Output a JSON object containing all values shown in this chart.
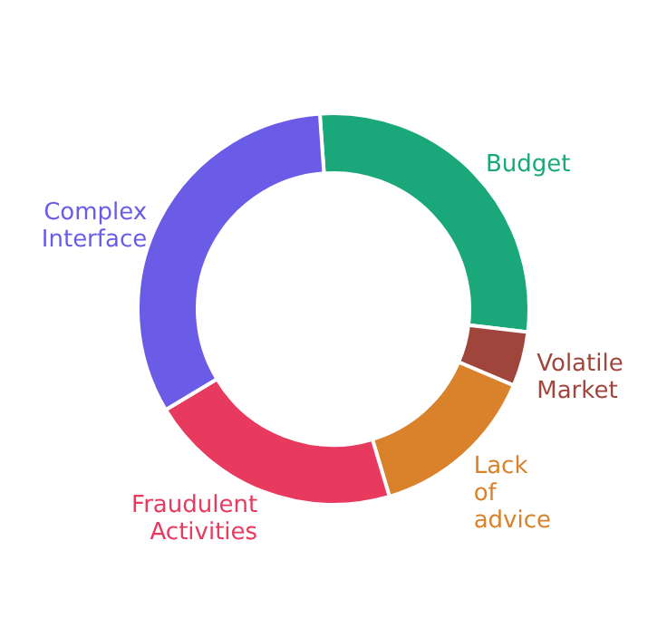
{
  "chart_data": {
    "type": "donut",
    "categories": [
      "Budget",
      "Volatile Market",
      "Lack of advice",
      "Fraudulent Activities",
      "Complex Interface"
    ],
    "values": [
      28,
      4.5,
      14,
      21,
      32.5
    ],
    "colors": [
      "#1aa87a",
      "#a0453c",
      "#d9822b",
      "#e8395f",
      "#6b5ce7"
    ]
  }
}
